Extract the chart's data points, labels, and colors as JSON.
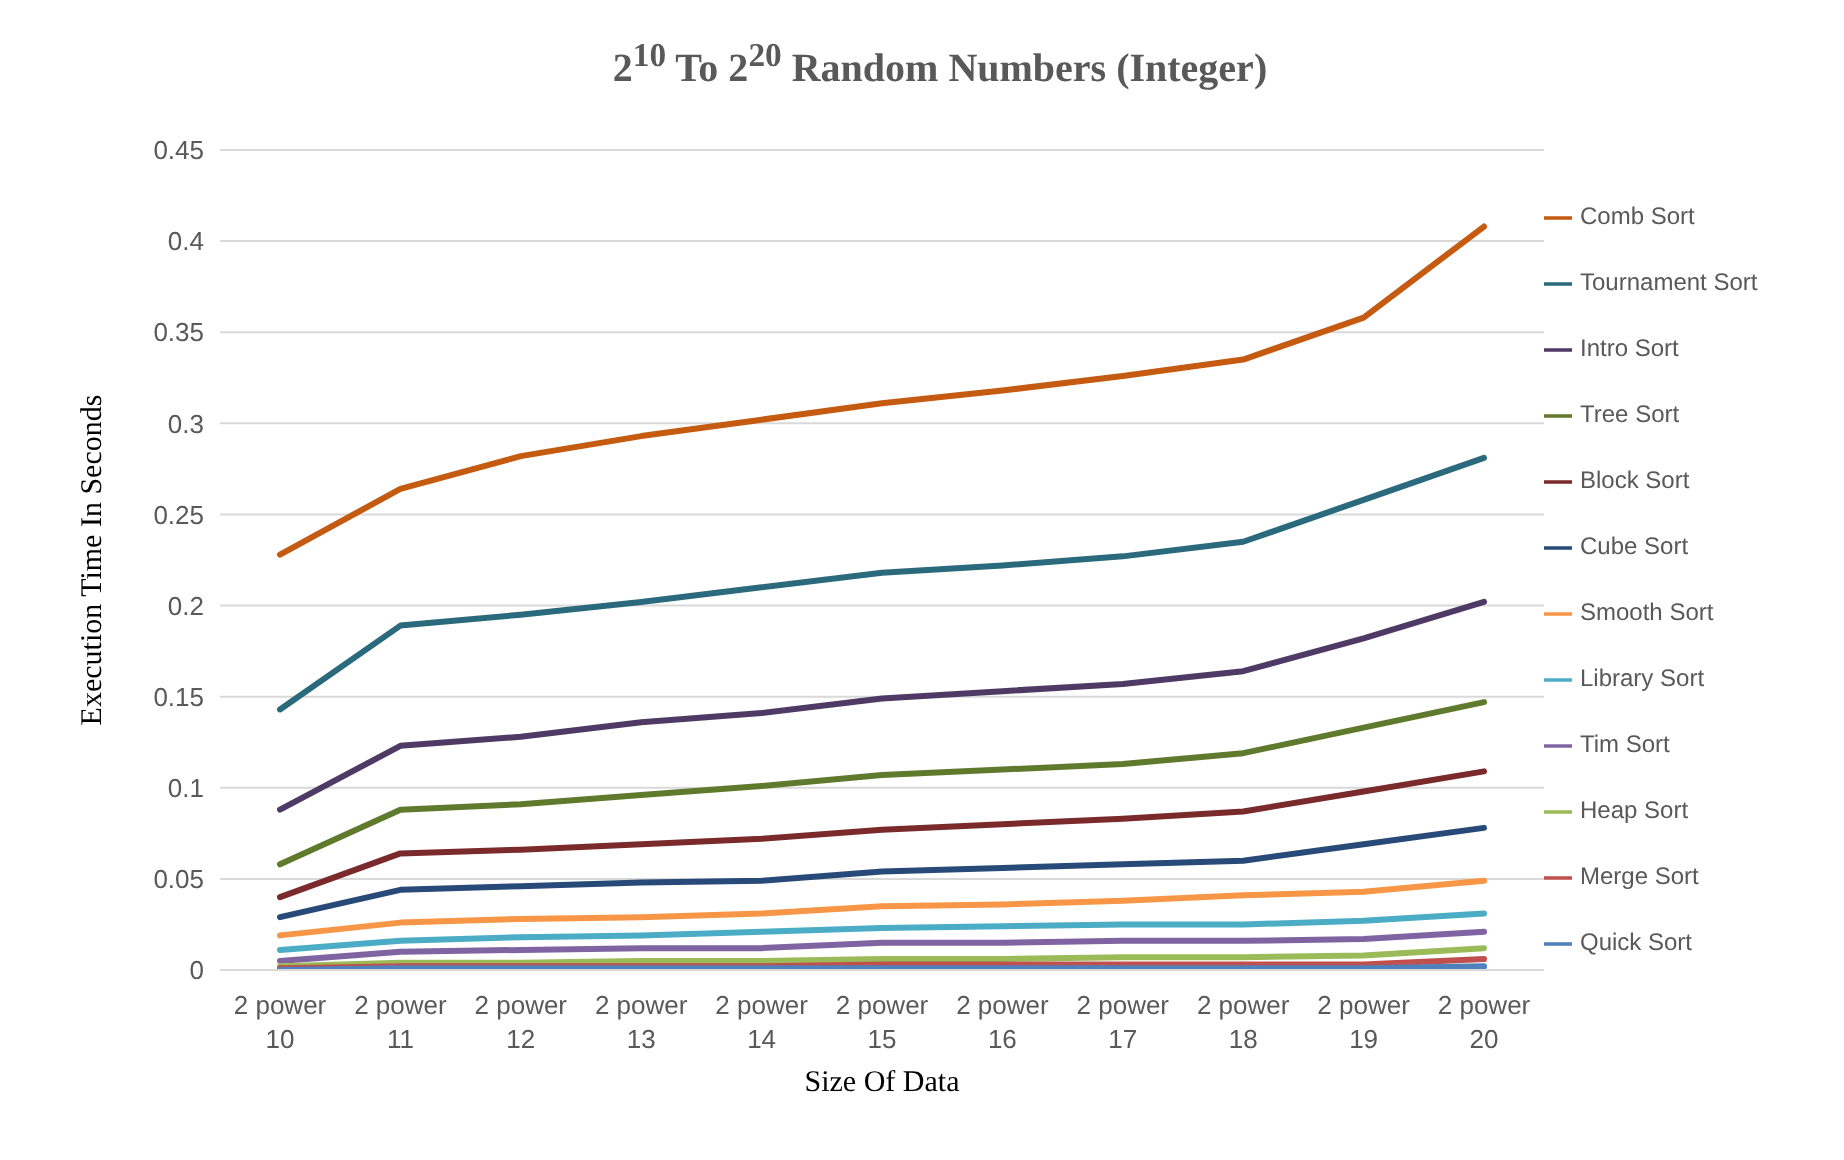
{
  "chart_data": {
    "type": "line",
    "title": "2$^{10}$ To 2$^{20}$ Random Numbers (Integer)",
    "xlabel": "Size Of Data",
    "ylabel": "Execution Time In Seconds",
    "categories": [
      "2 power 10",
      "2 power 11",
      "2 power 12",
      "2 power 13",
      "2 power 14",
      "2 power 15",
      "2 power 16",
      "2 power 17",
      "2 power 18",
      "2 power 19",
      "2 power 20"
    ],
    "ylim": [
      0,
      0.45
    ],
    "yticks": [
      0,
      0.05,
      0.1,
      0.15,
      0.2,
      0.25,
      0.3,
      0.35,
      0.4,
      0.45
    ],
    "grid": "y",
    "legend": "right",
    "marker": "none",
    "line_style": "solid",
    "series": [
      {
        "name": "Comb Sort",
        "color": "#c55a11",
        "values": [
          0.228,
          0.264,
          0.282,
          0.293,
          0.302,
          0.311,
          0.318,
          0.326,
          0.335,
          0.358,
          0.408
        ]
      },
      {
        "name": "Tournament Sort",
        "color": "#2a6a7c",
        "values": [
          0.143,
          0.189,
          0.195,
          0.202,
          0.21,
          0.218,
          0.222,
          0.227,
          0.235,
          0.258,
          0.281
        ]
      },
      {
        "name": "Intro Sort",
        "color": "#4f3a66",
        "values": [
          0.088,
          0.123,
          0.128,
          0.136,
          0.141,
          0.149,
          0.153,
          0.157,
          0.164,
          0.182,
          0.202
        ]
      },
      {
        "name": "Tree Sort",
        "color": "#5f7a2d",
        "values": [
          0.058,
          0.088,
          0.091,
          0.096,
          0.101,
          0.107,
          0.11,
          0.113,
          0.119,
          0.133,
          0.147
        ]
      },
      {
        "name": "Block Sort",
        "color": "#7a2a2a",
        "values": [
          0.04,
          0.064,
          0.066,
          0.069,
          0.072,
          0.077,
          0.08,
          0.083,
          0.087,
          0.098,
          0.109
        ]
      },
      {
        "name": "Cube Sort",
        "color": "#284a78",
        "values": [
          0.029,
          0.044,
          0.046,
          0.048,
          0.049,
          0.054,
          0.056,
          0.058,
          0.06,
          0.069,
          0.078
        ]
      },
      {
        "name": "Smooth Sort",
        "color": "#f79646",
        "values": [
          0.019,
          0.026,
          0.028,
          0.029,
          0.031,
          0.035,
          0.036,
          0.038,
          0.041,
          0.043,
          0.049
        ]
      },
      {
        "name": "Library Sort",
        "color": "#4bacc6",
        "values": [
          0.011,
          0.016,
          0.018,
          0.019,
          0.021,
          0.023,
          0.024,
          0.025,
          0.025,
          0.027,
          0.031
        ]
      },
      {
        "name": "Tim Sort",
        "color": "#8064a2",
        "values": [
          0.005,
          0.01,
          0.011,
          0.012,
          0.012,
          0.015,
          0.015,
          0.016,
          0.016,
          0.017,
          0.021
        ]
      },
      {
        "name": "Heap Sort",
        "color": "#9bbb59",
        "values": [
          0.002,
          0.004,
          0.004,
          0.005,
          0.005,
          0.006,
          0.006,
          0.007,
          0.007,
          0.008,
          0.012
        ]
      },
      {
        "name": "Merge Sort",
        "color": "#c0504d",
        "values": [
          0.001,
          0.002,
          0.002,
          0.002,
          0.002,
          0.003,
          0.003,
          0.003,
          0.003,
          0.003,
          0.006
        ]
      },
      {
        "name": "Quick Sort",
        "color": "#4f81bd",
        "values": [
          0,
          0.001,
          0.001,
          0.001,
          0.001,
          0.001,
          0.001,
          0.001,
          0.001,
          0.001,
          0.002
        ]
      }
    ]
  }
}
